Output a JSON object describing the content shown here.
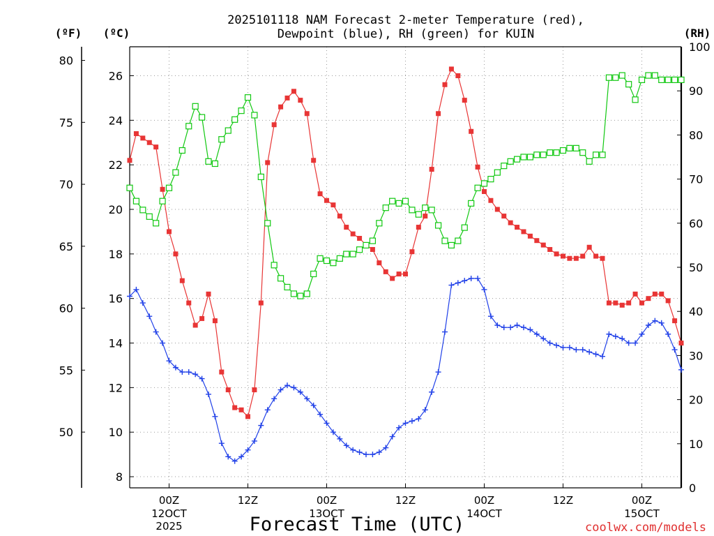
{
  "chart_data": {
    "type": "line",
    "title_lines": [
      "2025101118 NAM Forecast 2-meter Temperature (red),",
      "Dewpoint (blue), RH (green) for KUIN"
    ],
    "units": {
      "fahrenheit": "(ºF)",
      "celsius": "(ºC)",
      "rh": "(RH)"
    },
    "xlabel": "Forecast Time (UTC)",
    "credit": "coolwx.com/models",
    "x_unit": "hours since 2025-10-11 18Z",
    "xlim": [
      0,
      84
    ],
    "x_ticks": [
      {
        "x": 6,
        "label": "00Z",
        "sub": [
          "12OCT",
          "2025"
        ]
      },
      {
        "x": 18,
        "label": "12Z",
        "sub": []
      },
      {
        "x": 30,
        "label": "00Z",
        "sub": [
          "13OCT"
        ]
      },
      {
        "x": 42,
        "label": "12Z",
        "sub": []
      },
      {
        "x": 54,
        "label": "00Z",
        "sub": [
          "14OCT"
        ]
      },
      {
        "x": 66,
        "label": "12Z",
        "sub": []
      },
      {
        "x": 78,
        "label": "00Z",
        "sub": [
          "15OCT"
        ]
      }
    ],
    "celsius_axis": {
      "ylim": [
        7.5,
        27.3
      ],
      "ticks": [
        "8",
        "10",
        "12",
        "14",
        "16",
        "18",
        "20",
        "22",
        "24",
        "26"
      ]
    },
    "fahrenheit_axis": {
      "ylim": [
        45.5,
        81.1
      ],
      "ticks": [
        "50",
        "55",
        "60",
        "65",
        "70",
        "75",
        "80"
      ]
    },
    "rh_axis": {
      "ylim": [
        0,
        100
      ],
      "ticks": [
        "0",
        "10",
        "20",
        "30",
        "40",
        "50",
        "60",
        "70",
        "80",
        "90",
        "100"
      ]
    },
    "series": [
      {
        "name": "Temperature",
        "unit": "C",
        "axis": "celsius",
        "color": "#e83535",
        "marker": "filled-square",
        "values": [
          22.2,
          23.4,
          23.2,
          23.0,
          22.8,
          20.9,
          19.0,
          18.0,
          16.8,
          15.8,
          14.8,
          15.1,
          16.2,
          15.0,
          12.7,
          11.9,
          11.1,
          11.0,
          10.7,
          11.9,
          15.8,
          22.1,
          23.8,
          24.6,
          25.0,
          25.3,
          24.9,
          24.3,
          22.2,
          20.7,
          20.4,
          20.2,
          19.7,
          19.2,
          18.9,
          18.7,
          18.4,
          18.2,
          17.6,
          17.2,
          16.9,
          17.1,
          17.1,
          18.1,
          19.2,
          19.7,
          21.8,
          24.3,
          25.6,
          26.3,
          26.0,
          24.9,
          23.5,
          21.9,
          20.8,
          20.4,
          20.0,
          19.7,
          19.4,
          19.2,
          19.0,
          18.8,
          18.6,
          18.4,
          18.2,
          18.0,
          17.9,
          17.8,
          17.8,
          17.9,
          18.3,
          17.9,
          17.8,
          15.8,
          15.8,
          15.7,
          15.8,
          16.2,
          15.8,
          16.0,
          16.2,
          16.2,
          15.9,
          15.0,
          14.0
        ]
      },
      {
        "name": "Dewpoint",
        "unit": "C",
        "axis": "celsius",
        "color": "#2040e8",
        "marker": "plus",
        "values": [
          16.1,
          16.4,
          15.8,
          15.2,
          14.5,
          14.0,
          13.2,
          12.9,
          12.7,
          12.7,
          12.6,
          12.4,
          11.7,
          10.7,
          9.5,
          8.9,
          8.7,
          8.9,
          9.2,
          9.6,
          10.3,
          11.0,
          11.5,
          11.9,
          12.1,
          12.0,
          11.8,
          11.5,
          11.2,
          10.8,
          10.4,
          10.0,
          9.7,
          9.4,
          9.2,
          9.1,
          9.0,
          9.0,
          9.1,
          9.3,
          9.8,
          10.2,
          10.4,
          10.5,
          10.6,
          11.0,
          11.8,
          12.7,
          14.5,
          16.6,
          16.7,
          16.8,
          16.9,
          16.9,
          16.4,
          15.2,
          14.8,
          14.7,
          14.7,
          14.8,
          14.7,
          14.6,
          14.4,
          14.2,
          14.0,
          13.9,
          13.8,
          13.8,
          13.7,
          13.7,
          13.6,
          13.5,
          13.4,
          14.4,
          14.3,
          14.2,
          14.0,
          14.0,
          14.4,
          14.8,
          15.0,
          14.9,
          14.4,
          13.7,
          12.8
        ]
      },
      {
        "name": "RH",
        "unit": "%",
        "axis": "rh",
        "color": "#10c810",
        "marker": "open-square",
        "values": [
          68,
          65,
          63,
          61.5,
          60,
          65,
          68,
          71.5,
          76.5,
          82,
          86.5,
          84,
          74,
          73.5,
          79,
          81,
          83.5,
          85.5,
          88.5,
          84.5,
          70.5,
          60,
          50.5,
          47.5,
          45.5,
          44,
          43.5,
          44,
          48.5,
          52,
          51.5,
          51,
          52,
          53,
          53,
          54,
          55,
          56,
          60,
          63.5,
          65,
          64.5,
          65,
          63,
          62,
          63.5,
          63,
          59.5,
          56,
          55,
          56,
          59,
          64.5,
          68,
          69,
          70,
          71.5,
          73,
          74,
          74.5,
          75,
          75,
          75.5,
          75.5,
          76,
          76,
          76.5,
          77,
          77,
          76,
          74,
          75.5,
          75.5,
          93,
          93,
          93.5,
          91.5,
          88,
          92.5,
          93.5,
          93.5,
          92.5,
          92.5,
          92.5,
          92.5
        ]
      }
    ]
  }
}
